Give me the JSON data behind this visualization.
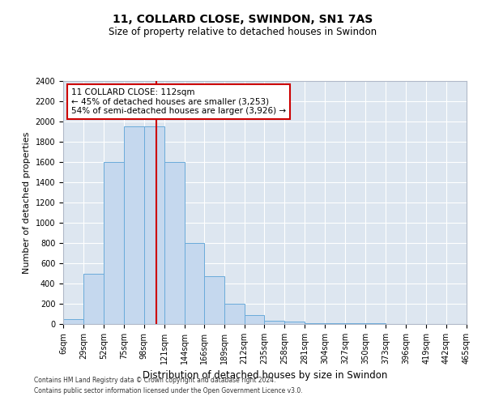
{
  "title": "11, COLLARD CLOSE, SWINDON, SN1 7AS",
  "subtitle": "Size of property relative to detached houses in Swindon",
  "xlabel": "Distribution of detached houses by size in Swindon",
  "ylabel": "Number of detached properties",
  "footer_line1": "Contains HM Land Registry data © Crown copyright and database right 2024.",
  "footer_line2": "Contains public sector information licensed under the Open Government Licence v3.0.",
  "annotation_line1": "11 COLLARD CLOSE: 112sqm",
  "annotation_line2": "← 45% of detached houses are smaller (3,253)",
  "annotation_line3": "54% of semi-detached houses are larger (3,926) →",
  "property_size": 112,
  "bin_edges": [
    6,
    29,
    52,
    75,
    98,
    121,
    144,
    166,
    189,
    212,
    235,
    258,
    281,
    304,
    327,
    350,
    373,
    396,
    419,
    442,
    465
  ],
  "bin_labels": [
    "6sqm",
    "29sqm",
    "52sqm",
    "75sqm",
    "98sqm",
    "121sqm",
    "144sqm",
    "166sqm",
    "189sqm",
    "212sqm",
    "235sqm",
    "258sqm",
    "281sqm",
    "304sqm",
    "327sqm",
    "350sqm",
    "373sqm",
    "396sqm",
    "419sqm",
    "442sqm",
    "465sqm"
  ],
  "counts": [
    50,
    500,
    1600,
    1950,
    1950,
    1600,
    800,
    475,
    200,
    90,
    35,
    25,
    10,
    5,
    5,
    5,
    0,
    0,
    0,
    0
  ],
  "bar_color": "#c5d8ee",
  "bar_edge_color": "#6aabda",
  "red_line_color": "#cc0000",
  "annotation_box_color": "#cc0000",
  "background_color": "#dde6f0",
  "grid_color": "#ffffff",
  "ylim": [
    0,
    2400
  ],
  "yticks": [
    0,
    200,
    400,
    600,
    800,
    1000,
    1200,
    1400,
    1600,
    1800,
    2000,
    2200,
    2400
  ],
  "title_fontsize": 10,
  "subtitle_fontsize": 8.5,
  "ylabel_fontsize": 8,
  "xlabel_fontsize": 8.5,
  "tick_fontsize": 7,
  "annotation_fontsize": 7.5,
  "footer_fontsize": 5.5
}
